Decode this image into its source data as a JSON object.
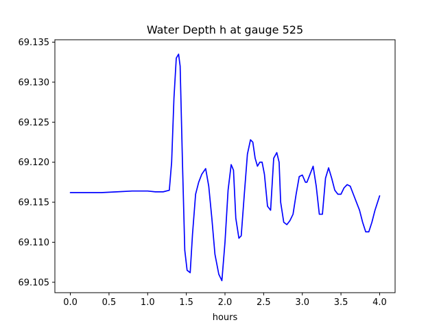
{
  "chart_data": {
    "type": "line",
    "title": "Water Depth h at gauge 525",
    "xlabel": "hours",
    "ylabel": "",
    "xlim": [
      -0.2,
      4.2
    ],
    "ylim": [
      69.1037,
      69.1353
    ],
    "xticks": [
      "0.0",
      "0.5",
      "1.0",
      "1.5",
      "2.0",
      "2.5",
      "3.0",
      "3.5",
      "4.0"
    ],
    "yticks": [
      "69.105",
      "69.110",
      "69.115",
      "69.120",
      "69.125",
      "69.130",
      "69.135"
    ],
    "grid": false,
    "series": [
      {
        "color": "#0000ff",
        "x": [
          0.0,
          0.2,
          0.4,
          0.6,
          0.8,
          1.0,
          1.1,
          1.2,
          1.28,
          1.31,
          1.34,
          1.37,
          1.4,
          1.42,
          1.45,
          1.48,
          1.51,
          1.55,
          1.58,
          1.62,
          1.66,
          1.7,
          1.75,
          1.79,
          1.83,
          1.87,
          1.92,
          1.96,
          2.0,
          2.04,
          2.08,
          2.11,
          2.14,
          2.18,
          2.21,
          2.25,
          2.29,
          2.33,
          2.36,
          2.39,
          2.42,
          2.45,
          2.48,
          2.51,
          2.55,
          2.59,
          2.63,
          2.67,
          2.7,
          2.72,
          2.76,
          2.8,
          2.84,
          2.88,
          2.92,
          2.96,
          3.0,
          3.04,
          3.06,
          3.1,
          3.14,
          3.18,
          3.22,
          3.26,
          3.3,
          3.34,
          3.38,
          3.42,
          3.46,
          3.5,
          3.54,
          3.58,
          3.62,
          3.66,
          3.7,
          3.74,
          3.78,
          3.82,
          3.86,
          3.9,
          3.94,
          4.0
        ],
        "y": [
          69.1162,
          69.1162,
          69.1162,
          69.1163,
          69.1164,
          69.1164,
          69.1163,
          69.1163,
          69.1165,
          69.12,
          69.128,
          69.133,
          69.1335,
          69.132,
          69.12,
          69.109,
          69.1065,
          69.1062,
          69.111,
          69.116,
          69.1175,
          69.1185,
          69.1192,
          69.117,
          69.113,
          69.1085,
          69.106,
          69.1052,
          69.11,
          69.1165,
          69.1197,
          69.119,
          69.113,
          69.1105,
          69.1108,
          69.116,
          69.121,
          69.1228,
          69.1225,
          69.1205,
          69.1195,
          69.12,
          69.12,
          69.1185,
          69.1145,
          69.114,
          69.1205,
          69.1212,
          69.12,
          69.115,
          69.1125,
          69.1122,
          69.1127,
          69.1135,
          69.116,
          69.1182,
          69.1184,
          69.1175,
          69.1175,
          69.1185,
          69.1195,
          69.117,
          69.1135,
          69.1135,
          69.118,
          69.1193,
          69.118,
          69.1165,
          69.116,
          69.116,
          69.1168,
          69.1172,
          69.117,
          69.116,
          69.115,
          69.114,
          69.1125,
          69.1113,
          69.1113,
          69.1125,
          69.114,
          69.1158
        ]
      }
    ]
  }
}
